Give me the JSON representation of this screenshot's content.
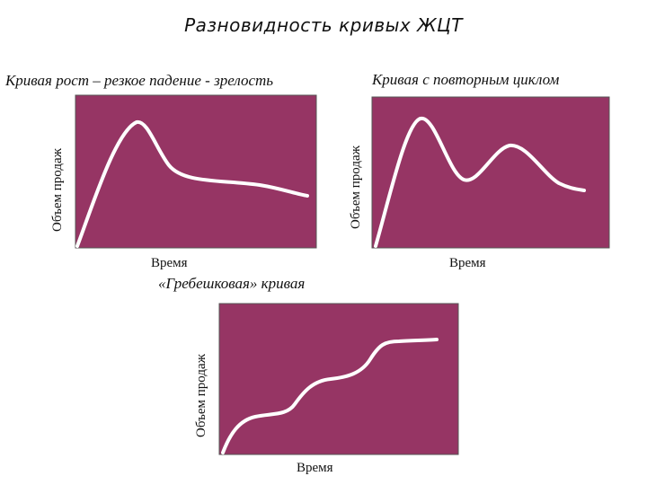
{
  "title": "Разновидность кривых ЖЦТ",
  "colors": {
    "panel": "#963564",
    "curve": "#ffffff",
    "axis": "#555555"
  },
  "charts": [
    {
      "title": "Кривая рост – резкое падение - зрелость",
      "ylabel": "Объем продаж",
      "xlabel": "Время",
      "shape": "boom-bust-maturity"
    },
    {
      "title": "Кривая с повторным циклом",
      "ylabel": "Объем продаж",
      "xlabel": "Время",
      "shape": "cycle-recycle"
    },
    {
      "title": "«Гребешковая» кривая",
      "ylabel": "Объем продаж",
      "xlabel": "Время",
      "shape": "scalloped"
    }
  ]
}
